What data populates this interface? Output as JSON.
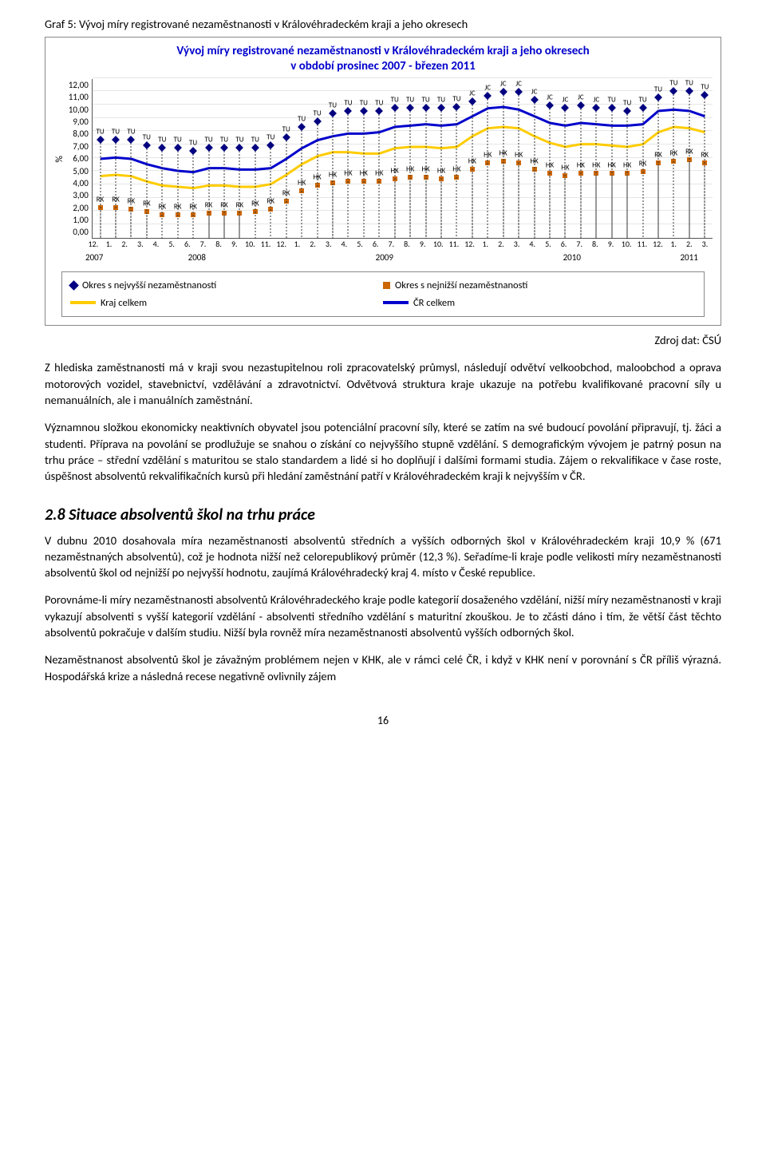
{
  "caption": "Graf 5: Vývoj míry registrované nezaměstnanosti v Královéhradeckém kraji a jeho okresech",
  "chart": {
    "type": "line+scatter",
    "title_line1": "Vývoj míry registrované nezaměstnanosti v Královéhradeckém kraji a jeho okresech",
    "title_line2": "v období prosinec 2007 - březen 2011",
    "title_color": "#0000cc",
    "title_fontsize": 15,
    "y_label": "%",
    "ylim": [
      0,
      12
    ],
    "ytick_step": 1,
    "yticks": [
      "12,00",
      "11,00",
      "10,00",
      "9,00",
      "8,00",
      "7,00",
      "6,00",
      "5,00",
      "4,00",
      "3,00",
      "2,00",
      "1,00",
      "0,00"
    ],
    "x_months": [
      "12.",
      "1.",
      "2.",
      "3.",
      "4.",
      "5.",
      "6.",
      "7.",
      "8.",
      "9.",
      "10.",
      "11.",
      "12.",
      "1.",
      "2.",
      "3.",
      "4.",
      "5.",
      "6.",
      "7.",
      "8.",
      "9.",
      "10.",
      "11.",
      "12.",
      "1.",
      "2.",
      "3.",
      "4.",
      "5.",
      "6.",
      "7.",
      "8.",
      "9.",
      "10.",
      "11.",
      "12.",
      "1.",
      "2.",
      "3."
    ],
    "x_years": [
      "2007",
      "2008",
      "2009",
      "2010",
      "2011"
    ],
    "x_year_spans": [
      1,
      12,
      12,
      12,
      3
    ],
    "background_color": "#ffffff",
    "grid_color": "#e6e6e6",
    "axis_color": "#555555",
    "series": {
      "cr": {
        "name": "ČR celkem",
        "type": "line",
        "color": "#0000cc",
        "width": 3,
        "values": [
          6.0,
          6.1,
          6.0,
          5.6,
          5.3,
          5.1,
          5.0,
          5.3,
          5.3,
          5.2,
          5.2,
          5.3,
          6.0,
          6.8,
          7.4,
          7.7,
          7.9,
          7.9,
          8.0,
          8.4,
          8.5,
          8.6,
          8.5,
          8.6,
          9.2,
          9.8,
          9.9,
          9.7,
          9.2,
          8.7,
          8.5,
          8.7,
          8.6,
          8.5,
          8.5,
          8.6,
          9.6,
          9.7,
          9.6,
          9.2
        ]
      },
      "kraj": {
        "name": "Kraj celkem",
        "type": "line",
        "color": "#ffcc00",
        "width": 3,
        "values": [
          4.7,
          4.8,
          4.7,
          4.3,
          4.0,
          3.9,
          3.8,
          4.0,
          4.0,
          3.9,
          3.9,
          4.1,
          4.8,
          5.6,
          6.2,
          6.5,
          6.5,
          6.4,
          6.4,
          6.8,
          6.9,
          6.9,
          6.8,
          6.9,
          7.7,
          8.3,
          8.4,
          8.3,
          7.7,
          7.2,
          6.9,
          7.1,
          7.1,
          7.0,
          6.9,
          7.1,
          8.0,
          8.4,
          8.3,
          8.0
        ]
      },
      "high": {
        "name": "Okres s nejvyšší nezaměstnaností",
        "type": "scatter",
        "marker": "diamond",
        "color": "#000080",
        "labels": [
          "TU",
          "TU",
          "TU",
          "TU",
          "TU",
          "TU",
          "TU",
          "TU",
          "TU",
          "TU",
          "TU",
          "TU",
          "TU",
          "TU",
          "TU",
          "TU",
          "TU",
          "TU",
          "TU",
          "TU",
          "TU",
          "TU",
          "TU",
          "TU",
          "JC",
          "JC",
          "JC",
          "JC",
          "JC",
          "JC",
          "JC",
          "JC",
          "JC",
          "TU",
          "TU",
          "TU",
          "TU",
          "TU",
          "TU",
          "TU"
        ],
        "values": [
          7.4,
          7.4,
          7.4,
          7.0,
          6.8,
          6.8,
          6.6,
          6.8,
          6.8,
          6.8,
          6.8,
          7.0,
          7.6,
          8.4,
          8.8,
          9.4,
          9.6,
          9.6,
          9.6,
          9.8,
          9.8,
          9.8,
          9.8,
          9.9,
          10.3,
          10.7,
          11.0,
          11.0,
          10.4,
          10.0,
          9.8,
          10.0,
          9.8,
          9.8,
          9.6,
          9.8,
          10.6,
          11.1,
          11.1,
          10.8
        ]
      },
      "low": {
        "name": "Okres s nejnižší nezaměstnaností",
        "type": "scatter",
        "marker": "square",
        "color": "#cc6600",
        "labels": [
          "RK",
          "RK",
          "RK",
          "RK",
          "RK",
          "RK",
          "RK",
          "RK",
          "RK",
          "RK",
          "RK",
          "RK",
          "RK",
          "HK",
          "HK",
          "HK",
          "HK",
          "HK",
          "HK",
          "HK",
          "HK",
          "HK",
          "HK",
          "HK",
          "HK",
          "HK",
          "HK",
          "HK",
          "HK",
          "HK",
          "HK",
          "HK",
          "HK",
          "HK",
          "HK",
          "RK",
          "RK",
          "RK",
          "RK",
          "RK"
        ],
        "values": [
          2.3,
          2.3,
          2.2,
          2.0,
          1.8,
          1.8,
          1.8,
          1.9,
          1.9,
          1.9,
          2.0,
          2.2,
          2.8,
          3.6,
          4.0,
          4.2,
          4.3,
          4.3,
          4.3,
          4.5,
          4.6,
          4.6,
          4.5,
          4.6,
          5.2,
          5.7,
          5.8,
          5.7,
          5.2,
          4.9,
          4.7,
          4.9,
          4.9,
          4.9,
          4.9,
          5.0,
          5.7,
          5.8,
          5.9,
          5.7
        ]
      }
    },
    "legend": [
      {
        "marker": "diamond",
        "color": "#000080",
        "text": "Okres s nejvyšší nezaměstnaností"
      },
      {
        "marker": "square",
        "color": "#cc6600",
        "text": "Okres s nejnižší nezaměstnaností"
      },
      {
        "marker": "line",
        "color": "#ffcc00",
        "text": "Kraj celkem"
      },
      {
        "marker": "line",
        "color": "#0000cc",
        "text": "ČR celkem"
      }
    ]
  },
  "source": "Zdroj dat: ČSÚ",
  "para1": "Z hlediska zaměstnanosti má v kraji svou nezastupitelnou roli zpracovatelský průmysl, následují odvětví velkoobchod, maloobchod a oprava motorových vozidel, stavebnictví, vzdělávání a zdravotnictví. Odvětvová struktura kraje ukazuje na potřebu kvalifikované pracovní síly u nemanuálních, ale i manuálních zaměstnání.",
  "para2": "Významnou složkou ekonomicky neaktivních obyvatel jsou potenciální pracovní síly, které se zatím na své budoucí povolání připravují, tj. žáci a studenti. Příprava na povolání se prodlužuje se snahou o získání co nejvyššího stupně vzdělání. S demografickým vývojem je patrný posun na trhu práce – střední vzdělání s maturitou se stalo standardem a lidé si ho doplňují i dalšími formami studia. Zájem o rekvalifikace v čase roste, úspěšnost absolventů rekvalifikačních kursů při hledání zaměstnání patří v Královéhradeckém kraji k nejvyšším v ČR.",
  "heading": "2.8   Situace absolventů škol na trhu práce",
  "para3": "V dubnu 2010 dosahovala míra nezaměstnanosti absolventů středních a vyšších odborných škol v Královéhradeckém kraji 10,9 % (671 nezaměstnaných absolventů), což je hodnota nižší než celorepublikový průměr (12,3 %). Seřadíme-li kraje podle velikosti míry nezaměstnanosti absolventů škol od nejnižší po nejvyšší hodnotu, zaujímá Královéhradecký kraj 4. místo v České republice.",
  "para4": "Porovnáme-li míry nezaměstnanosti absolventů Královéhradeckého kraje podle kategorií dosaženého vzdělání, nižší míry nezaměstnanosti v kraji vykazují absolventi s vyšší kategorií vzdělání - absolventi středního vzdělání s maturitní zkouškou. Je to zčásti dáno i tím, že větší část těchto absolventů pokračuje v dalším studiu. Nižší byla rovněž míra nezaměstnanosti absolventů vyšších odborných škol.",
  "para5": "Nezaměstnanost absolventů škol je závažným problémem nejen v KHK, ale v rámci celé ČR, i když v KHK není v porovnání s ČR příliš výrazná. Hospodářská krize a následná recese negativně ovlivnily zájem",
  "pagenum": "16"
}
